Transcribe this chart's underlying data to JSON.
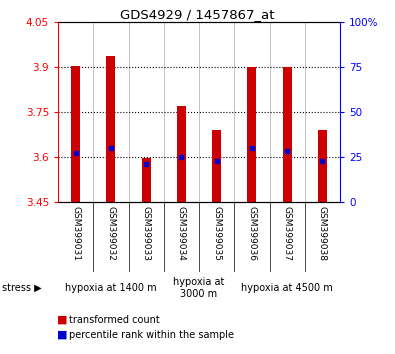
{
  "title": "GDS4929 / 1457867_at",
  "samples": [
    "GSM399031",
    "GSM399032",
    "GSM399033",
    "GSM399034",
    "GSM399035",
    "GSM399036",
    "GSM399037",
    "GSM399038"
  ],
  "bar_tops": [
    3.905,
    3.935,
    3.595,
    3.77,
    3.69,
    3.9,
    3.9,
    3.69
  ],
  "bar_bottom": 3.45,
  "percentile_values": [
    3.615,
    3.63,
    3.578,
    3.6,
    3.588,
    3.63,
    3.62,
    3.588
  ],
  "ylim": [
    3.45,
    4.05
  ],
  "yticks": [
    3.45,
    3.6,
    3.75,
    3.9,
    4.05
  ],
  "ytick_labels": [
    "3.45",
    "3.6",
    "3.75",
    "3.9",
    "4.05"
  ],
  "right_yticks_pct": [
    0,
    25,
    50,
    75,
    100
  ],
  "right_ytick_labels": [
    "0",
    "25",
    "50",
    "75",
    "100%"
  ],
  "groups": [
    {
      "label": "hypoxia at 1400 m",
      "indices": [
        0,
        1,
        2
      ],
      "color": "#c8e6c8"
    },
    {
      "label": "hypoxia at\n3000 m",
      "indices": [
        3,
        4
      ],
      "color": "#d8f0d8"
    },
    {
      "label": "hypoxia at 4500 m",
      "indices": [
        5,
        6,
        7
      ],
      "color": "#90ee90"
    }
  ],
  "bar_color": "#cc0000",
  "percentile_color": "#0000cc",
  "tick_area_color": "#d3d3d3",
  "dotted_yticks": [
    3.6,
    3.75,
    3.9
  ],
  "bar_width": 0.25
}
